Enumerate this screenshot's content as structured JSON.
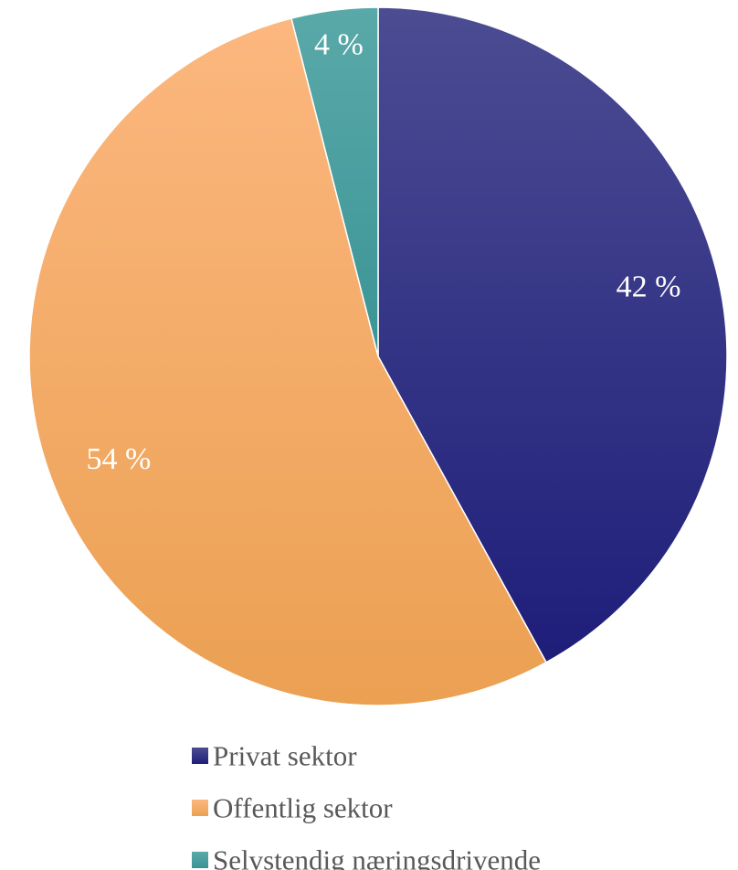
{
  "chart_data": {
    "type": "pie",
    "title": "",
    "legend_position": "bottom",
    "start_angle_deg": 0,
    "direction": "clockwise",
    "slices": [
      {
        "name": "Privat sektor",
        "value": 42,
        "label": "42 %",
        "color": "#1e1e7a",
        "color_light": "#4c4c93"
      },
      {
        "name": "Offentlig sektor",
        "value": 54,
        "label": "54 %",
        "color": "#eba052",
        "color_light": "#fcb77f"
      },
      {
        "name": "Selvstendig næringsdrivende",
        "value": 4,
        "label": "4 %",
        "color": "#3b9495",
        "color_light": "#5aa9a9"
      }
    ]
  }
}
